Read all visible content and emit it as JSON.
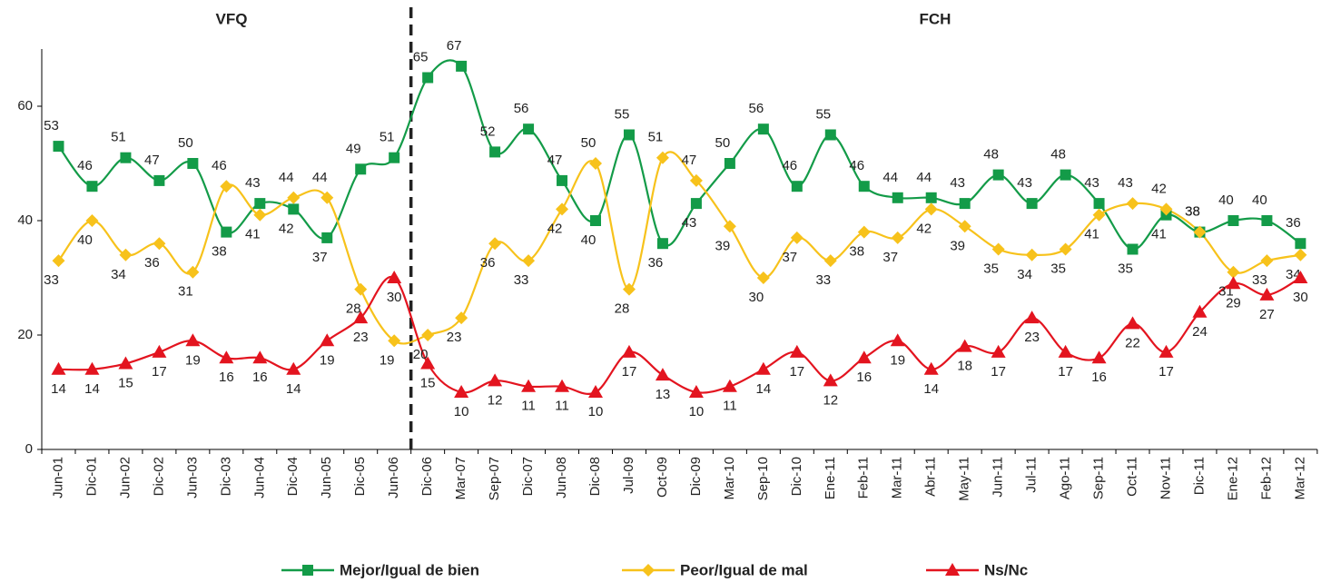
{
  "chart_data": {
    "type": "line",
    "annotations": [
      "VFQ",
      "FCH"
    ],
    "categories": [
      "Jun-01",
      "Dic-01",
      "Jun-02",
      "Dic-02",
      "Jun-03",
      "Dic-03",
      "Jun-04",
      "Dic-04",
      "Jun-05",
      "Dic-05",
      "Jun-06",
      "Dic-06",
      "Mar-07",
      "Sep-07",
      "Dic-07",
      "Jun-08",
      "Dic-08",
      "Jul-09",
      "Oct-09",
      "Dic-09",
      "Mar-10",
      "Sep-10",
      "Dic-10",
      "Ene-11",
      "Feb-11",
      "Mar-11",
      "Abr-11",
      "May-11",
      "Jun-11",
      "Jul-11",
      "Ago-11",
      "Sep-11",
      "Oct-11",
      "Nov-11",
      "Dic-11",
      "Ene-12",
      "Feb-12",
      "Mar-12"
    ],
    "series": [
      {
        "name": "Mejor/Igual de bien",
        "color": "#139b48",
        "marker": "square",
        "values": [
          53,
          46,
          51,
          47,
          50,
          38,
          43,
          42,
          37,
          49,
          51,
          65,
          67,
          52,
          56,
          47,
          40,
          55,
          36,
          43,
          50,
          56,
          46,
          55,
          46,
          44,
          44,
          43,
          48,
          43,
          48,
          43,
          35,
          41,
          38,
          40,
          40,
          36
        ]
      },
      {
        "name": "Peor/Igual de mal",
        "color": "#f7c21b",
        "marker": "diamond",
        "values": [
          33,
          40,
          34,
          36,
          31,
          46,
          41,
          44,
          44,
          28,
          19,
          20,
          23,
          36,
          33,
          42,
          50,
          28,
          51,
          47,
          39,
          30,
          37,
          33,
          38,
          37,
          42,
          39,
          35,
          34,
          35,
          41,
          43,
          42,
          38,
          31,
          33,
          34
        ]
      },
      {
        "name": "Ns/Nc",
        "color": "#e3141f",
        "marker": "triangle",
        "values": [
          14,
          14,
          15,
          17,
          19,
          16,
          16,
          14,
          19,
          23,
          30,
          15,
          10,
          12,
          11,
          11,
          10,
          17,
          13,
          10,
          11,
          14,
          17,
          12,
          16,
          19,
          14,
          18,
          17,
          23,
          17,
          16,
          22,
          17,
          24,
          29,
          27,
          30
        ]
      }
    ],
    "ylim": [
      0,
      70
    ],
    "yticks": [
      0,
      20,
      40,
      60
    ]
  }
}
